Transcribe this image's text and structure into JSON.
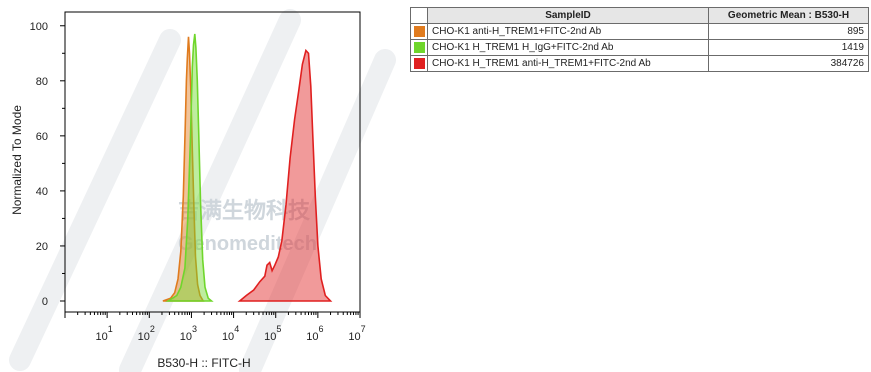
{
  "chart_data": {
    "type": "histogram",
    "xlabel": "B530-H :: FITC-H",
    "ylabel": "Normalized To Mode",
    "x_scale": "log",
    "xlim": [
      1,
      10000000
    ],
    "ylim": [
      -4,
      105
    ],
    "y_ticks": [
      0,
      20,
      40,
      60,
      80,
      100
    ],
    "x_ticks": [
      {
        "base": "10",
        "exp": "1",
        "value": 10
      },
      {
        "base": "10",
        "exp": "2",
        "value": 100
      },
      {
        "base": "10",
        "exp": "3",
        "value": 1000
      },
      {
        "base": "10",
        "exp": "4",
        "value": 10000
      },
      {
        "base": "10",
        "exp": "5",
        "value": 100000
      },
      {
        "base": "10",
        "exp": "6",
        "value": 1000000
      },
      {
        "base": "10",
        "exp": "7",
        "value": 10000000
      }
    ],
    "series": [
      {
        "name": "CHO-K1 anti-H_TREM1+FITC-2nd Ab",
        "color": "#e07b1e",
        "points": [
          [
            210,
            0
          ],
          [
            320,
            1
          ],
          [
            400,
            3
          ],
          [
            480,
            8
          ],
          [
            560,
            18
          ],
          [
            640,
            38
          ],
          [
            710,
            63
          ],
          [
            760,
            80
          ],
          [
            800,
            88
          ],
          [
            850,
            96
          ],
          [
            900,
            90
          ],
          [
            960,
            78
          ],
          [
            1050,
            55
          ],
          [
            1150,
            33
          ],
          [
            1250,
            16
          ],
          [
            1400,
            6
          ],
          [
            1600,
            2
          ],
          [
            1900,
            0
          ]
        ]
      },
      {
        "name": "CHO-K1 H_TREM1 H_IgG+FITC-2nd Ab",
        "color": "#6fd62b",
        "points": [
          [
            280,
            0
          ],
          [
            450,
            2
          ],
          [
            560,
            5
          ],
          [
            700,
            12
          ],
          [
            820,
            30
          ],
          [
            950,
            60
          ],
          [
            1050,
            85
          ],
          [
            1120,
            93
          ],
          [
            1200,
            97
          ],
          [
            1280,
            92
          ],
          [
            1380,
            80
          ],
          [
            1500,
            60
          ],
          [
            1650,
            35
          ],
          [
            1850,
            15
          ],
          [
            2100,
            5
          ],
          [
            2500,
            1
          ],
          [
            3000,
            0
          ]
        ]
      },
      {
        "name": "CHO-K1 H_TREM1 anti-H_TREM1+FITC-2nd Ab",
        "color": "#e02020",
        "points": [
          [
            14000,
            0
          ],
          [
            20000,
            2
          ],
          [
            30000,
            4
          ],
          [
            42000,
            7
          ],
          [
            55000,
            9
          ],
          [
            62000,
            13
          ],
          [
            72000,
            14
          ],
          [
            82000,
            11
          ],
          [
            95000,
            13
          ],
          [
            115000,
            16
          ],
          [
            140000,
            22
          ],
          [
            175000,
            35
          ],
          [
            220000,
            52
          ],
          [
            280000,
            66
          ],
          [
            350000,
            76
          ],
          [
            430000,
            86
          ],
          [
            520000,
            91
          ],
          [
            600000,
            90
          ],
          [
            680000,
            78
          ],
          [
            760000,
            60
          ],
          [
            870000,
            38
          ],
          [
            1000000,
            20
          ],
          [
            1200000,
            8
          ],
          [
            1500000,
            2
          ],
          [
            2000000,
            0
          ]
        ]
      }
    ]
  },
  "table": {
    "headers": [
      "SampleID",
      "Geometric Mean : B530-H"
    ],
    "rows": [
      {
        "color": "#e07b1e",
        "sample": "CHO-K1 anti-H_TREM1+FITC-2nd Ab",
        "mean": "895"
      },
      {
        "color": "#6fd62b",
        "sample": "CHO-K1 H_TREM1 H_IgG+FITC-2nd Ab",
        "mean": "1419"
      },
      {
        "color": "#e02020",
        "sample": "CHO-K1 H_TREM1 anti-H_TREM1+FITC-2nd Ab",
        "mean": "384726"
      }
    ]
  },
  "watermark": {
    "cn": "吉满生物科技",
    "en": "Genomeditech"
  }
}
